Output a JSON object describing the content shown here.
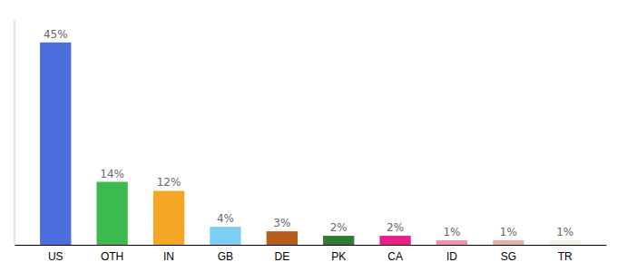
{
  "chart_data": {
    "type": "bar",
    "categories": [
      "US",
      "OTH",
      "IN",
      "GB",
      "DE",
      "PK",
      "CA",
      "ID",
      "SG",
      "TR"
    ],
    "values": [
      45,
      14,
      12,
      4,
      3,
      2,
      2,
      1,
      1,
      1
    ],
    "value_labels": [
      "45%",
      "14%",
      "12%",
      "4%",
      "3%",
      "2%",
      "2%",
      "1%",
      "1%",
      "1%"
    ],
    "colors": [
      "#4a6fdc",
      "#3dba4e",
      "#f5a623",
      "#7ecef4",
      "#b85c1a",
      "#2e7d32",
      "#e91e8c",
      "#f48fb1",
      "#e8b4a0",
      "#f5f0e8"
    ],
    "ylim": [
      0,
      50
    ],
    "grid": false,
    "data_labels": true,
    "tick_labels": "x"
  }
}
